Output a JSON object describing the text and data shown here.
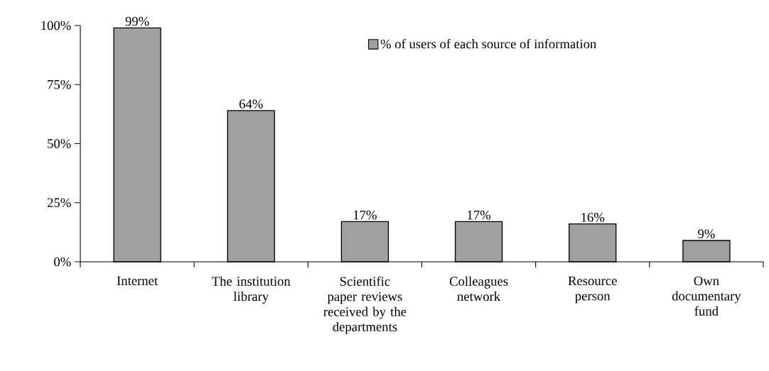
{
  "chart_data": {
    "type": "bar",
    "categories": [
      "Internet",
      "The institution library",
      "Scientific paper reviews received by the departments",
      "Colleagues network",
      "Resource person",
      "Own documentary fund"
    ],
    "series": [
      {
        "name": "% of users of each source of information",
        "color": "#a0a0a0",
        "values": [
          99,
          64,
          17,
          17,
          16,
          9
        ]
      }
    ],
    "value_labels": [
      "99%",
      "64%",
      "17%",
      "17%",
      "16%",
      "9%"
    ],
    "ylim": [
      0,
      100
    ],
    "yticks": [
      {
        "value": 0,
        "label": "0%"
      },
      {
        "value": 25,
        "label": "25%"
      },
      {
        "value": 50,
        "label": "50%"
      },
      {
        "value": 75,
        "label": "75%"
      },
      {
        "value": 100,
        "label": "100%"
      }
    ],
    "grid": false,
    "legend": "top"
  }
}
